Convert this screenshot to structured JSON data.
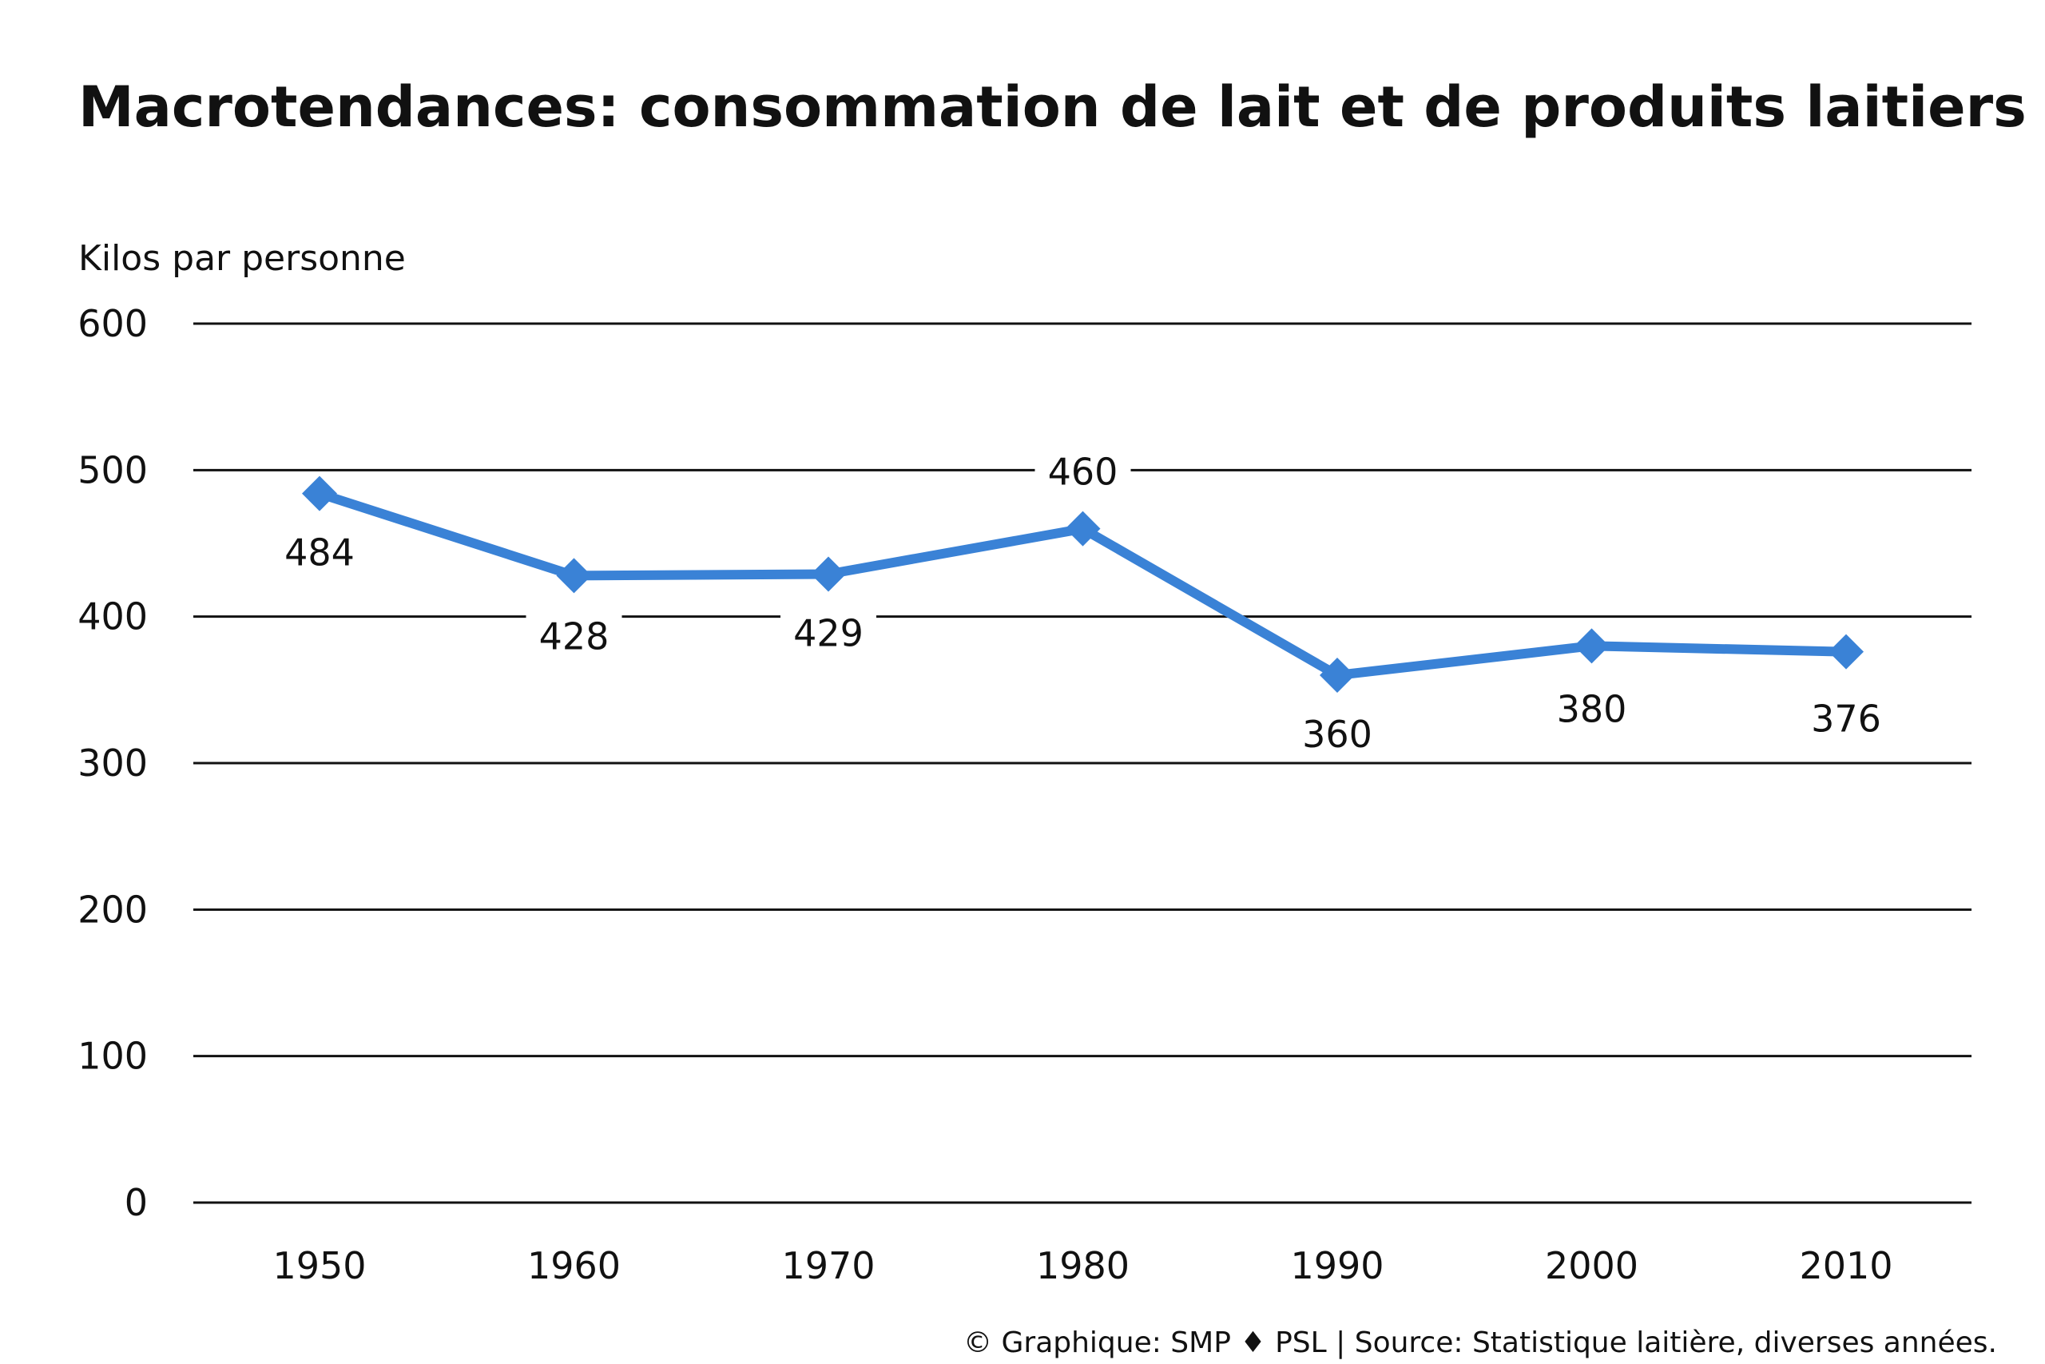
{
  "chart_data": {
    "type": "line",
    "title": "Macrotendances: consommation de lait et de produits laitiers",
    "ylabel": "Kilos par personne",
    "xlabel": "",
    "ylim": [
      0,
      600
    ],
    "y_ticks": [
      "600",
      "500",
      "400",
      "300",
      "200",
      "100",
      "0"
    ],
    "y_tick_values": [
      600,
      500,
      400,
      300,
      200,
      100,
      0
    ],
    "categories": [
      "1950",
      "1960",
      "1970",
      "1980",
      "1990",
      "2000",
      "2010"
    ],
    "series": [
      {
        "values": [
          484,
          428,
          429,
          460,
          360,
          380,
          376
        ],
        "labels": [
          "484",
          "428",
          "429",
          "460",
          "360",
          "380",
          "376"
        ],
        "color": "#3a82d6"
      }
    ],
    "grid": true,
    "legend": "none",
    "marker": "diamond"
  },
  "footer": "© Graphique: SMP ♦ PSL | Source: Statistique laitière, diverses années."
}
